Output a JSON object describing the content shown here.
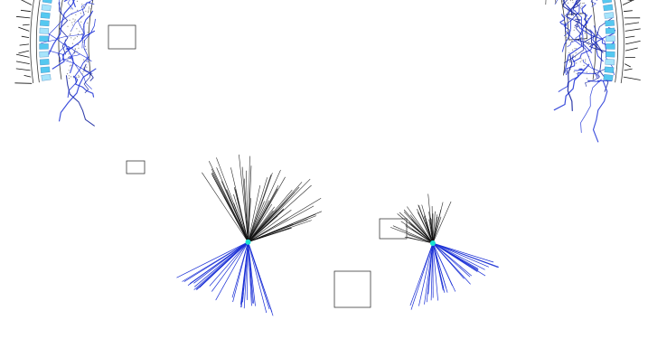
{
  "diagram": {
    "description_free": true,
    "colors": {
      "background": "#ffffff",
      "ring_outline": "#3a3a3a",
      "blue_wires": "#1a2fd6",
      "blue_dark": "#0b1a9a",
      "cyan_cells": "#55c8f0",
      "cyan_light": "#a6e4fb",
      "black_fans": "#111111",
      "grey_speckle": "#8a8a8a",
      "hub": "#19e0d0"
    },
    "ring": {
      "ticks": 150,
      "cells": 120
    },
    "hubs": [
      {
        "name": "hub-left",
        "angle_deg": 207,
        "r_factor": 0.9,
        "fan_lines": 70,
        "fan_spread": 1.25,
        "fan_len": 70
      },
      {
        "name": "hub-upper-right",
        "angle_deg": 330,
        "r_factor": 0.86,
        "fan_lines": 90,
        "fan_spread": 1.6,
        "fan_len": 90
      },
      {
        "name": "hub-bottom-left",
        "angle_deg": 111,
        "r_factor": 0.74,
        "fan_lines": 60,
        "fan_spread": 1.0,
        "fan_len": 95
      },
      {
        "name": "hub-bottom-right",
        "angle_deg": 63,
        "r_factor": 0.78,
        "fan_lines": 40,
        "fan_spread": 0.9,
        "fan_len": 55
      }
    ]
  }
}
